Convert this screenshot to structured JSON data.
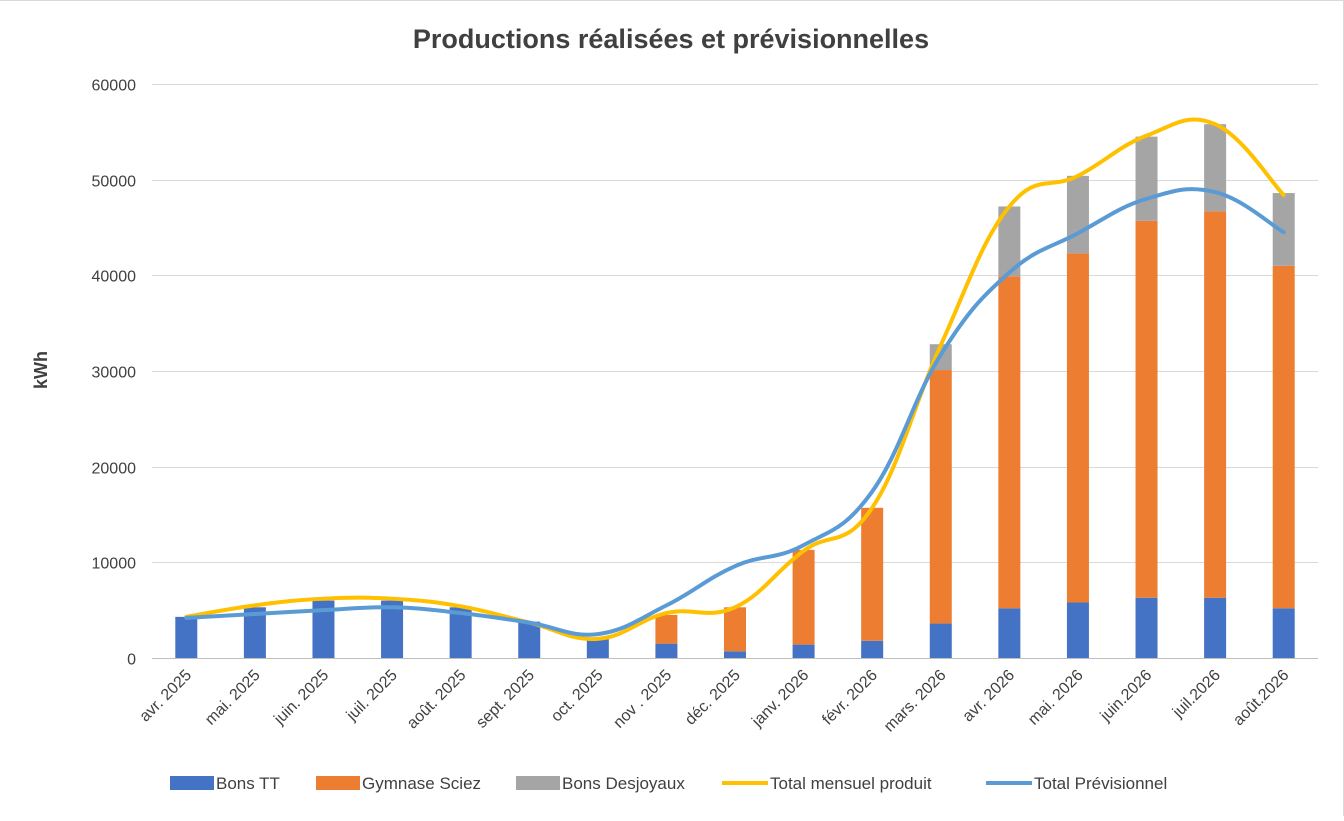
{
  "chart_data": {
    "type": "bar",
    "stacked": true,
    "title": "Productions réalisées et prévisionnelles",
    "xlabel": "",
    "ylabel": "kWh",
    "ylim": [
      0,
      60000
    ],
    "yticks": [
      0,
      10000,
      20000,
      30000,
      40000,
      50000,
      60000
    ],
    "grid": true,
    "legend_position": "bottom",
    "categories": [
      "avr. 2025",
      "mai. 2025",
      "juin. 2025",
      "juil. 2025",
      "août. 2025",
      "sept. 2025",
      "oct. 2025",
      "nov . 2025",
      "déc. 2025",
      "janv. 2026",
      "févr. 2026",
      "mars. 2026",
      "avr. 2026",
      "mai. 2026",
      "juin.2026",
      "juil.2026",
      "août.2026"
    ],
    "series": [
      {
        "name": "Bons TT",
        "kind": "bar",
        "color": "#4472C4",
        "values": [
          4300,
          5300,
          6000,
          6000,
          5300,
          3800,
          2000,
          1500,
          700,
          1400,
          1800,
          3600,
          5200,
          5800,
          6300,
          6300,
          5200
        ]
      },
      {
        "name": "Gymnase Sciez",
        "kind": "bar",
        "color": "#ED7D31",
        "values": [
          0,
          0,
          0,
          0,
          0,
          0,
          0,
          3000,
          4600,
          9900,
          13900,
          26500,
          34700,
          36500,
          39400,
          40400,
          35800
        ]
      },
      {
        "name": "Bons Desjoyaux",
        "kind": "bar",
        "color": "#A5A5A5",
        "values": [
          0,
          0,
          0,
          0,
          0,
          0,
          0,
          0,
          0,
          0,
          0,
          2700,
          7300,
          8100,
          8800,
          9100,
          7600
        ]
      },
      {
        "name": "Total mensuel produit",
        "kind": "line",
        "color": "#FFC000",
        "values": [
          4300,
          5500,
          6200,
          6200,
          5400,
          3700,
          2000,
          4700,
          5300,
          11200,
          15700,
          32700,
          47200,
          50400,
          54600,
          55800,
          48400
        ]
      },
      {
        "name": "Total Prévisionnel",
        "kind": "line",
        "color": "#5B9BD5",
        "values": [
          4200,
          4600,
          5000,
          5300,
          4700,
          3700,
          2500,
          5500,
          9600,
          11800,
          17400,
          31700,
          40300,
          44400,
          48000,
          48700,
          44500
        ]
      }
    ]
  }
}
